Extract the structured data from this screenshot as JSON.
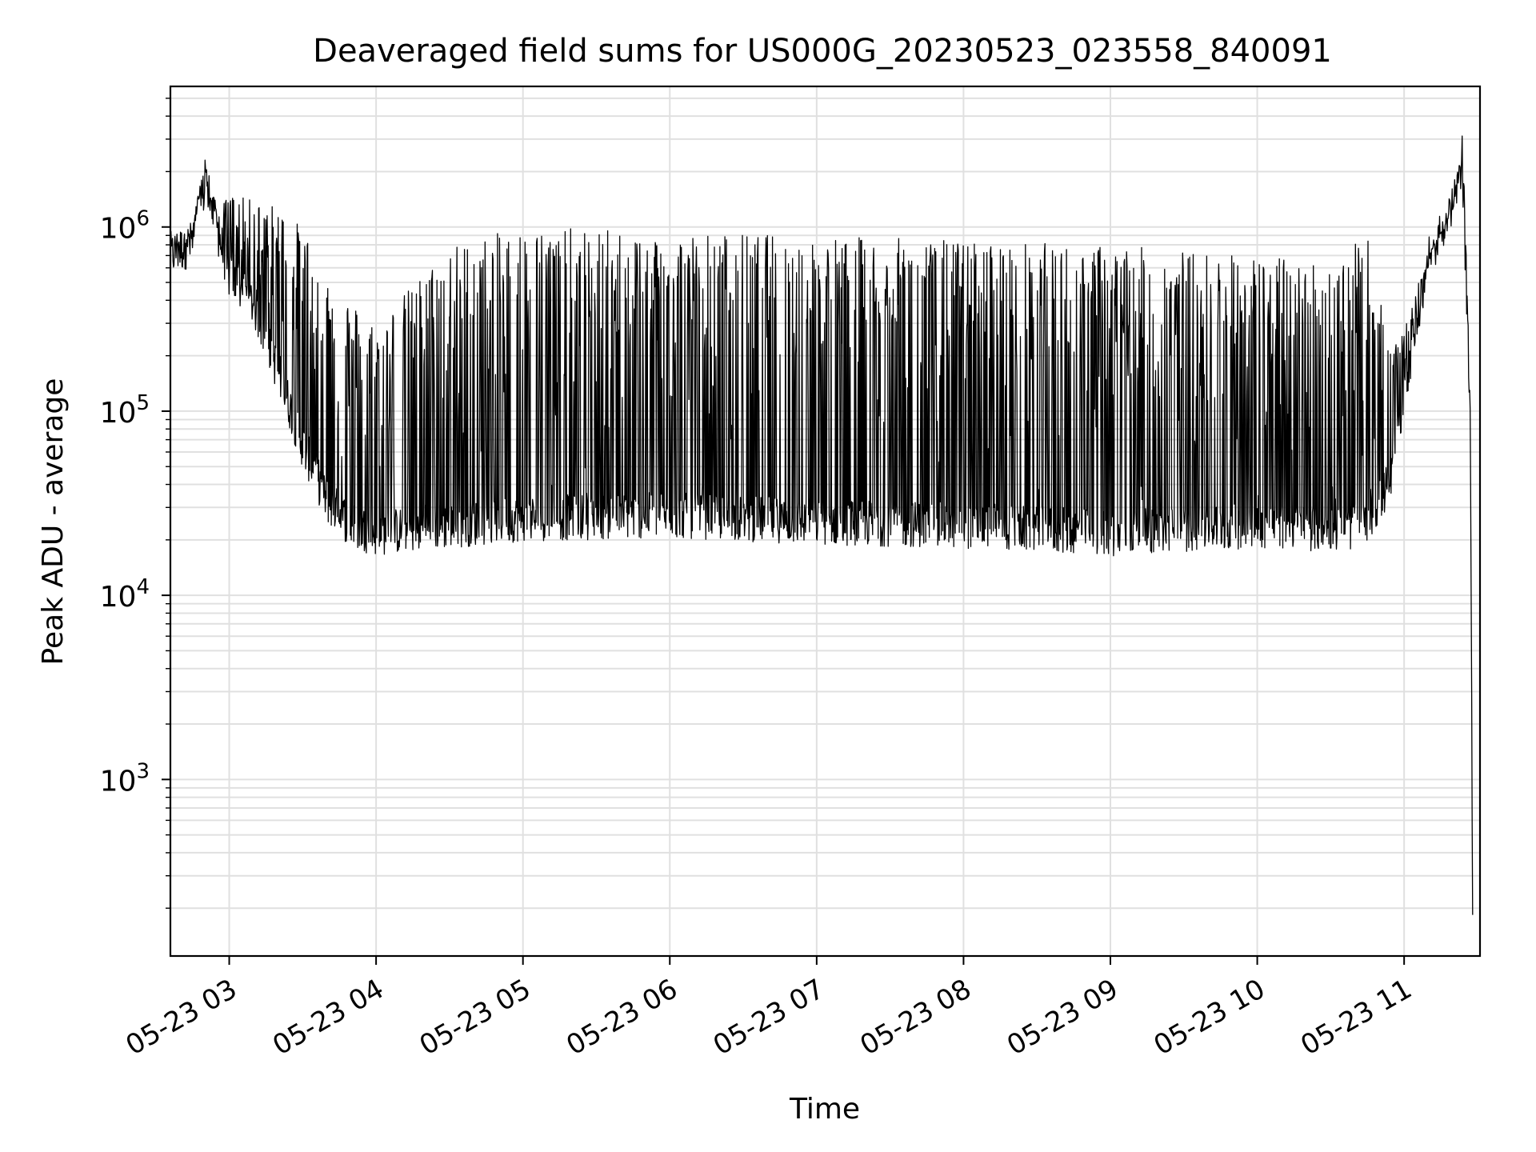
{
  "chart_data": {
    "type": "line",
    "title": "Deaveraged field sums for US000G_20230523_023558_840091",
    "xlabel": "Time",
    "ylabel": "Peak ADU - average",
    "yscale": "log",
    "ylim": [
      110,
      5800000
    ],
    "xlim": [
      "2023-05-23 02:35:58",
      "2023-05-23 11:31:00"
    ],
    "grid": true,
    "grid_color": "#e0e0e0",
    "line_color": "#000000",
    "x_ticks": [
      {
        "time": "2023-05-23 03:00",
        "label": "05-23 03"
      },
      {
        "time": "2023-05-23 04:00",
        "label": "05-23 04"
      },
      {
        "time": "2023-05-23 05:00",
        "label": "05-23 05"
      },
      {
        "time": "2023-05-23 06:00",
        "label": "05-23 06"
      },
      {
        "time": "2023-05-23 07:00",
        "label": "05-23 07"
      },
      {
        "time": "2023-05-23 08:00",
        "label": "05-23 08"
      },
      {
        "time": "2023-05-23 09:00",
        "label": "05-23 09"
      },
      {
        "time": "2023-05-23 10:00",
        "label": "05-23 10"
      },
      {
        "time": "2023-05-23 11:00",
        "label": "05-23 11"
      }
    ],
    "y_ticks": [
      {
        "value": 1000,
        "base": "10",
        "exp": "3"
      },
      {
        "value": 10000,
        "base": "10",
        "exp": "4"
      },
      {
        "value": 100000,
        "base": "10",
        "exp": "5"
      },
      {
        "value": 1000000,
        "base": "10",
        "exp": "6"
      }
    ],
    "series": [
      {
        "x": [
          "2023-05-23 02:36",
          "2023-05-23 02:45",
          "2023-05-23 02:50",
          "2023-05-23 02:55",
          "2023-05-23 03:00",
          "2023-05-23 03:10",
          "2023-05-23 03:20",
          "2023-05-23 03:30",
          "2023-05-23 03:40",
          "2023-05-23 03:50",
          "2023-05-23 04:00",
          "2023-05-23 04:30",
          "2023-05-23 05:00",
          "2023-05-23 06:00",
          "2023-05-23 07:00",
          "2023-05-23 08:00",
          "2023-05-23 09:00",
          "2023-05-23 10:00",
          "2023-05-23 10:30",
          "2023-05-23 10:45",
          "2023-05-23 10:55",
          "2023-05-23 11:00",
          "2023-05-23 11:10",
          "2023-05-23 11:20",
          "2023-05-23 11:24",
          "2023-05-23 11:27",
          "2023-05-23 11:28"
        ],
        "base": [
          650000,
          750000,
          1500000,
          900000,
          500000,
          350000,
          150000,
          60000,
          30000,
          22000,
          20000,
          22000,
          24000,
          25000,
          23000,
          22000,
          20000,
          22000,
          21000,
          22000,
          40000,
          120000,
          600000,
          1200000,
          1700000,
          100000,
          150
        ],
        "peak": [
          800000,
          1000000,
          2500000,
          1200000,
          1500000,
          1400000,
          1300000,
          1000000,
          600000,
          400000,
          300000,
          800000,
          1000000,
          950000,
          900000,
          850000,
          800000,
          700000,
          650000,
          900000,
          200000,
          300000,
          700000,
          1300000,
          3500000,
          100000,
          150
        ]
      }
    ]
  }
}
